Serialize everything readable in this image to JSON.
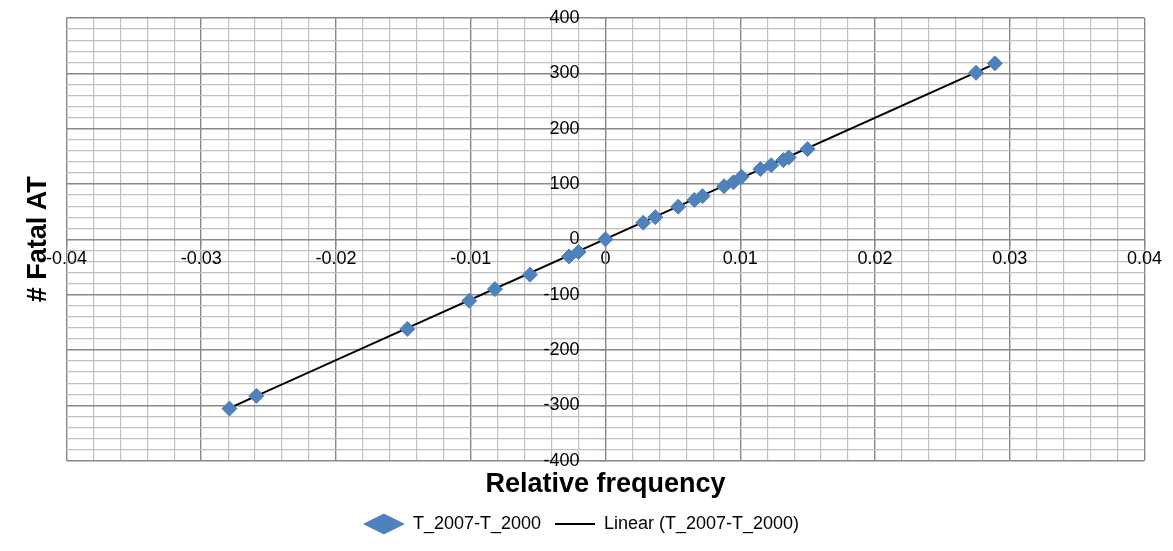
{
  "chart_data": {
    "type": "scatter",
    "xlabel": "Relative frequency",
    "ylabel": "# Fatal AT",
    "xlim": [
      -0.04,
      0.04
    ],
    "xticks": [
      -0.04,
      {
        "value": -0.038,
        "label": null
      },
      {
        "value": -0.036,
        "label": null
      },
      {
        "value": -0.034,
        "label": null
      },
      {
        "value": -0.032,
        "label": null
      },
      -0.03,
      {
        "value": -0.028,
        "label": null
      },
      {
        "value": -0.026,
        "label": null
      },
      {
        "value": -0.024,
        "label": null
      },
      {
        "value": -0.022,
        "label": null
      },
      -0.02,
      {
        "value": -0.018,
        "label": null
      },
      {
        "value": -0.016,
        "label": null
      },
      {
        "value": -0.014,
        "label": null
      },
      {
        "value": -0.012,
        "label": null
      },
      -0.01,
      {
        "value": -0.008,
        "label": null
      },
      {
        "value": -0.006,
        "label": null
      },
      {
        "value": -0.004,
        "label": null
      },
      {
        "value": -0.002,
        "label": null
      },
      0,
      {
        "value": 0.002,
        "label": null
      },
      {
        "value": 0.004,
        "label": null
      },
      {
        "value": 0.006,
        "label": null
      },
      {
        "value": 0.008,
        "label": null
      },
      0.01,
      {
        "value": 0.012,
        "label": null
      },
      {
        "value": 0.014,
        "label": null
      },
      {
        "value": 0.016,
        "label": null
      },
      {
        "value": 0.018,
        "label": null
      },
      0.02,
      {
        "value": 0.022,
        "label": null
      },
      {
        "value": 0.024,
        "label": null
      },
      {
        "value": 0.026,
        "label": null
      },
      {
        "value": 0.028,
        "label": null
      },
      0.03,
      {
        "value": 0.032,
        "label": null
      },
      {
        "value": 0.034,
        "label": null
      },
      {
        "value": 0.036,
        "label": null
      },
      {
        "value": 0.038,
        "label": null
      },
      0.04
    ],
    "ylim": [
      -400,
      400
    ],
    "yticks": [
      -400,
      {
        "value": -380,
        "label": null
      },
      {
        "value": -360,
        "label": null
      },
      {
        "value": -340,
        "label": null
      },
      {
        "value": -320,
        "label": null
      },
      -300,
      {
        "value": -280,
        "label": null
      },
      {
        "value": -260,
        "label": null
      },
      {
        "value": -240,
        "label": null
      },
      {
        "value": -220,
        "label": null
      },
      -200,
      {
        "value": -180,
        "label": null
      },
      {
        "value": -160,
        "label": null
      },
      {
        "value": -140,
        "label": null
      },
      {
        "value": -120,
        "label": null
      },
      -100,
      {
        "value": -80,
        "label": null
      },
      {
        "value": -60,
        "label": null
      },
      {
        "value": -40,
        "label": null
      },
      {
        "value": -20,
        "label": null
      },
      0,
      {
        "value": 20,
        "label": null
      },
      {
        "value": 40,
        "label": null
      },
      {
        "value": 60,
        "label": null
      },
      {
        "value": 80,
        "label": null
      },
      100,
      {
        "value": 120,
        "label": null
      },
      {
        "value": 140,
        "label": null
      },
      {
        "value": 160,
        "label": null
      },
      {
        "value": 180,
        "label": null
      },
      200,
      {
        "value": 220,
        "label": null
      },
      {
        "value": 240,
        "label": null
      },
      {
        "value": 260,
        "label": null
      },
      {
        "value": 280,
        "label": null
      },
      300,
      {
        "value": 320,
        "label": null
      },
      {
        "value": 340,
        "label": null
      },
      {
        "value": 360,
        "label": null
      },
      {
        "value": 380,
        "label": null
      },
      400
    ],
    "grid": true,
    "legend": "bottom",
    "series": [
      {
        "name": "T_2007-T_2000",
        "color": "#4f81bd",
        "marker": "diamond",
        "x": [
          -0.0279,
          -0.0259,
          -0.0147,
          -0.0101,
          -0.0082,
          -0.0056,
          -0.0027,
          -0.002,
          0,
          0.0028,
          0.0037,
          0.0054,
          0.0066,
          0.0072,
          0.0088,
          0.0095,
          0.0101,
          0.0115,
          0.0123,
          0.0132,
          0.0136,
          0.015,
          0.0275,
          0.0289
        ],
        "values": [
          -306,
          -283,
          -162,
          -111,
          -90,
          -64,
          -31,
          -23,
          0,
          30,
          40,
          59,
          71,
          78,
          96,
          103,
          113,
          127,
          134,
          143,
          148,
          163,
          301,
          318
        ]
      },
      {
        "name": "Linear (T_2007-T_2000)",
        "type": "line",
        "color": "#000000",
        "marker": "none",
        "x": [
          -0.0279,
          0.0289
        ],
        "values": [
          -305,
          317
        ]
      }
    ]
  }
}
